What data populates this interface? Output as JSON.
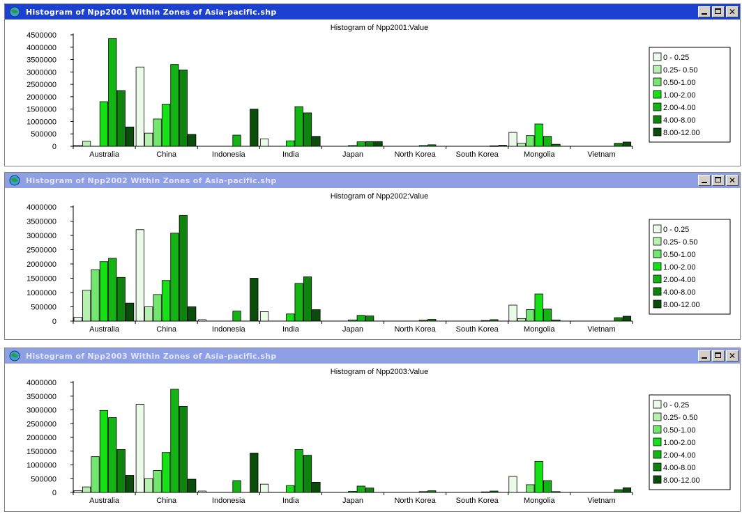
{
  "legend_items": [
    "0 - 0.25",
    "0.25- 0.50",
    "0.50-1.00",
    "1.00-2.00",
    "2.00-4.00",
    "4.00-8.00",
    "8.00-12.00"
  ],
  "colors": [
    "#eafbe8",
    "#b8f0b2",
    "#73e670",
    "#16e016",
    "#14b414",
    "#0e840e",
    "#0a4d0a"
  ],
  "windows": [
    {
      "title": "Histogram of Npp2001 Within Zones of Asia-pacific.shp",
      "active": true,
      "buttons": {
        "min": "minimize",
        "max": "maximize",
        "close": "✕"
      }
    },
    {
      "title": "Histogram of Npp2002 Within Zones of Asia-pacific.shp",
      "active": false,
      "buttons": {
        "min": "minimize",
        "max": "maximize",
        "close": "✕"
      }
    },
    {
      "title": "Histogram of Npp2003 Within Zones of Asia-pacific.shp",
      "active": false,
      "buttons": {
        "min": "minimize",
        "max": "maximize",
        "close": "✕"
      }
    }
  ],
  "chart_data": [
    {
      "type": "bar",
      "title": "Histogram of Npp2001:Value",
      "categories": [
        "Australia",
        "China",
        "Indonesia",
        "India",
        "Japan",
        "North Korea",
        "South Korea",
        "Mongolia",
        "Vietnam"
      ],
      "ylim": [
        0,
        4500000
      ],
      "yticks": [
        0,
        500000,
        1000000,
        1500000,
        2000000,
        2500000,
        3000000,
        3500000,
        4000000,
        4500000
      ],
      "legend_position": "right",
      "series": [
        {
          "name": "0 - 0.25",
          "values": [
            30000,
            3200000,
            0,
            300000,
            0,
            0,
            0,
            560000,
            0
          ]
        },
        {
          "name": "0.25- 0.50",
          "values": [
            200000,
            530000,
            0,
            0,
            0,
            0,
            0,
            120000,
            0
          ]
        },
        {
          "name": "0.50-1.00",
          "values": [
            0,
            1100000,
            0,
            0,
            0,
            0,
            0,
            430000,
            0
          ]
        },
        {
          "name": "1.00-2.00",
          "values": [
            1800000,
            1700000,
            0,
            220000,
            30000,
            0,
            0,
            900000,
            0
          ]
        },
        {
          "name": "2.00-4.00",
          "values": [
            4350000,
            3300000,
            450000,
            1600000,
            180000,
            30000,
            0,
            400000,
            0
          ]
        },
        {
          "name": "4.00-8.00",
          "values": [
            2250000,
            3080000,
            0,
            1350000,
            190000,
            60000,
            20000,
            80000,
            120000
          ]
        },
        {
          "name": "8.00-12.00",
          "values": [
            780000,
            480000,
            1500000,
            400000,
            190000,
            0,
            40000,
            0,
            170000
          ]
        }
      ]
    },
    {
      "type": "bar",
      "title": "Histogram of Npp2002:Value",
      "categories": [
        "Australia",
        "China",
        "Indonesia",
        "India",
        "Japan",
        "North Korea",
        "South Korea",
        "Mongolia",
        "Vietnam"
      ],
      "ylim": [
        0,
        4000000
      ],
      "yticks": [
        0,
        500000,
        1000000,
        1500000,
        2000000,
        2500000,
        3000000,
        3500000,
        4000000
      ],
      "legend_position": "right",
      "series": [
        {
          "name": "0 - 0.25",
          "values": [
            130000,
            3200000,
            50000,
            330000,
            0,
            0,
            0,
            560000,
            0
          ]
        },
        {
          "name": "0.25- 0.50",
          "values": [
            1080000,
            500000,
            0,
            0,
            0,
            0,
            0,
            90000,
            0
          ]
        },
        {
          "name": "0.50-1.00",
          "values": [
            1800000,
            930000,
            0,
            0,
            0,
            0,
            0,
            400000,
            0
          ]
        },
        {
          "name": "1.00-2.00",
          "values": [
            2080000,
            1420000,
            0,
            250000,
            40000,
            0,
            0,
            950000,
            0
          ]
        },
        {
          "name": "2.00-4.00",
          "values": [
            2200000,
            3080000,
            350000,
            1320000,
            200000,
            30000,
            20000,
            420000,
            0
          ]
        },
        {
          "name": "4.00-8.00",
          "values": [
            1530000,
            3700000,
            0,
            1550000,
            180000,
            60000,
            50000,
            40000,
            120000
          ]
        },
        {
          "name": "8.00-12.00",
          "values": [
            630000,
            500000,
            1500000,
            400000,
            0,
            0,
            0,
            0,
            170000
          ]
        }
      ]
    },
    {
      "type": "bar",
      "title": "Histogram of Npp2003:Value",
      "categories": [
        "Australia",
        "China",
        "Indonesia",
        "India",
        "Japan",
        "North Korea",
        "South Korea",
        "Mongolia",
        "Vietnam"
      ],
      "ylim": [
        0,
        4000000
      ],
      "yticks": [
        0,
        500000,
        1000000,
        1500000,
        2000000,
        2500000,
        3000000,
        3500000,
        4000000
      ],
      "legend_position": "right",
      "series": [
        {
          "name": "0 - 0.25",
          "values": [
            60000,
            3200000,
            50000,
            300000,
            0,
            0,
            0,
            580000,
            0
          ]
        },
        {
          "name": "0.25- 0.50",
          "values": [
            200000,
            500000,
            0,
            0,
            0,
            0,
            0,
            0,
            0
          ]
        },
        {
          "name": "0.50-1.00",
          "values": [
            1300000,
            800000,
            0,
            0,
            0,
            0,
            0,
            280000,
            0
          ]
        },
        {
          "name": "1.00-2.00",
          "values": [
            2980000,
            1450000,
            0,
            250000,
            40000,
            0,
            0,
            1130000,
            0
          ]
        },
        {
          "name": "2.00-4.00",
          "values": [
            2720000,
            3750000,
            430000,
            1560000,
            230000,
            30000,
            20000,
            430000,
            0
          ]
        },
        {
          "name": "4.00-8.00",
          "values": [
            1560000,
            3130000,
            0,
            1350000,
            160000,
            60000,
            50000,
            30000,
            100000
          ]
        },
        {
          "name": "8.00-12.00",
          "values": [
            620000,
            480000,
            1430000,
            370000,
            0,
            0,
            0,
            0,
            170000
          ]
        }
      ]
    }
  ]
}
